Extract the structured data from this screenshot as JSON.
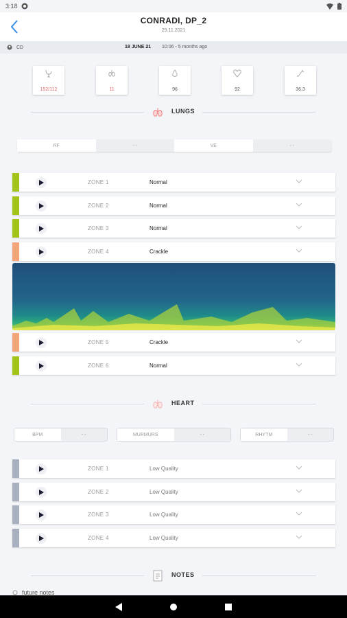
{
  "status_bar": {
    "time": "3:18"
  },
  "header": {
    "title": "CONRADI, DP_2",
    "date": "29.11.2021"
  },
  "info": {
    "user": "CD",
    "date": "18 JUNE 21",
    "ago": "10:06 - 5 months ago"
  },
  "vitals": [
    {
      "icon": "blood-pressure-icon",
      "value": "152/112"
    },
    {
      "icon": "lungs-icon",
      "value": "11"
    },
    {
      "icon": "drop-icon",
      "value": "96"
    },
    {
      "icon": "heart-icon",
      "value": "92"
    },
    {
      "icon": "thermometer-icon",
      "value": "36.3"
    }
  ],
  "lungs": {
    "title": "LUNGS",
    "tabs": [
      {
        "label": "RF"
      },
      {
        "label": "- -"
      },
      {
        "label": "VE"
      },
      {
        "label": "- -"
      }
    ],
    "zones": [
      {
        "name": "ZONE 1",
        "status": "Normal",
        "color": "#a3c41b"
      },
      {
        "name": "ZONE 2",
        "status": "Normal",
        "color": "#a3c41b"
      },
      {
        "name": "ZONE 3",
        "status": "Normal",
        "color": "#a3c41b"
      },
      {
        "name": "ZONE 4",
        "status": "Crackle",
        "color": "#f4a57a"
      },
      {
        "name": "ZONE 5",
        "status": "Crackle",
        "color": "#f4a57a"
      },
      {
        "name": "ZONE 6",
        "status": "Normal",
        "color": "#a3c41b"
      }
    ]
  },
  "heart": {
    "title": "HEART",
    "bpm": {
      "label": "BPM",
      "value": "- -"
    },
    "murmurs": {
      "label": "MURMURS",
      "value": "- -"
    },
    "rhythm": {
      "label": "RHYTM",
      "value": "- -"
    },
    "zones": [
      {
        "name": "ZONE 1",
        "status": "Low Quality",
        "color": "#a8b0c0"
      },
      {
        "name": "ZONE 2",
        "status": "Low Quality",
        "color": "#a8b0c0"
      },
      {
        "name": "ZONE 3",
        "status": "Low Quality",
        "color": "#a8b0c0"
      },
      {
        "name": "ZONE 4",
        "status": "Low Quality",
        "color": "#a8b0c0"
      }
    ]
  },
  "notes": {
    "title": "NOTES",
    "text": "future notes"
  }
}
